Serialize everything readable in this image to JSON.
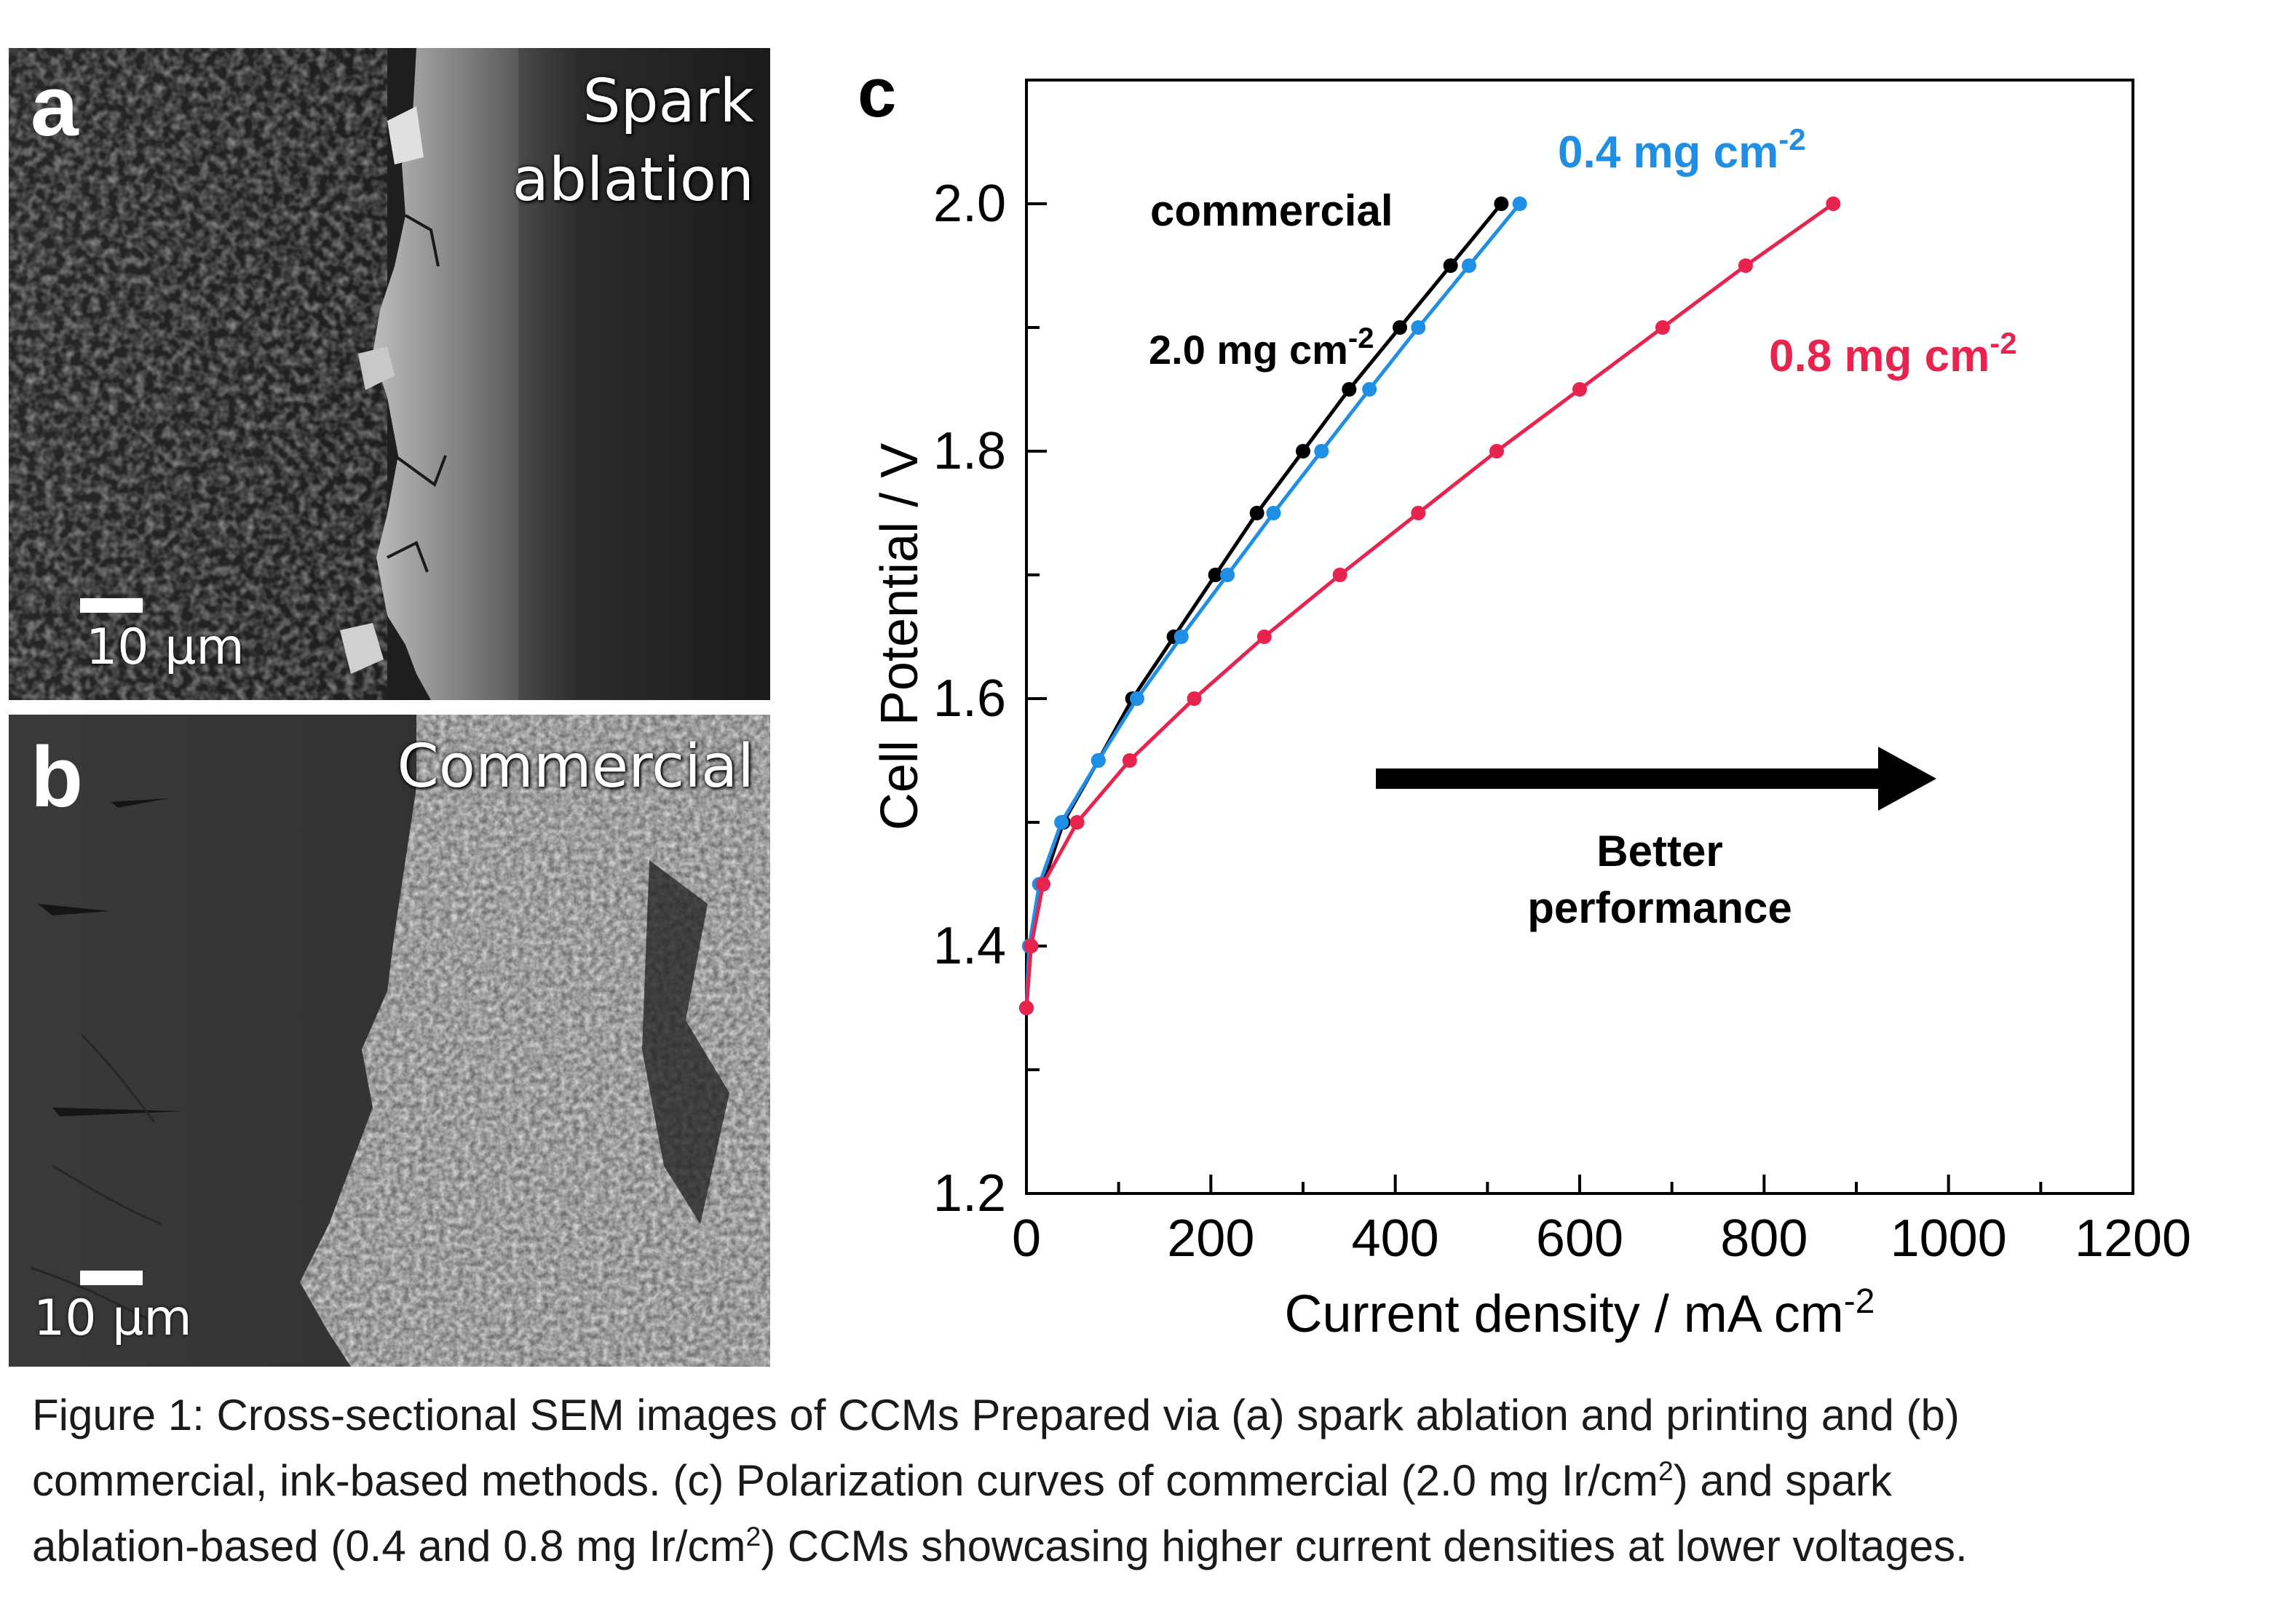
{
  "panels": {
    "a": {
      "letter": "a",
      "title_line1": "Spark",
      "title_line2": "ablation",
      "scale_label": "10 µm"
    },
    "b": {
      "letter": "b",
      "title": "Commercial",
      "scale_label": "10 µm"
    }
  },
  "chart_panel_letter": "c",
  "chart_data": {
    "type": "line",
    "xlabel": "Current density / mA cm",
    "xlabel_sup": "-2",
    "ylabel": "Cell Potential / V",
    "xlim": [
      0,
      1200
    ],
    "ylim": [
      1.2,
      2.1
    ],
    "xticks": [
      0,
      200,
      400,
      600,
      800,
      1000,
      1200
    ],
    "yticks_labeled": [
      1.2,
      1.4,
      1.6,
      1.8,
      2.0
    ],
    "ytick_labels": [
      "1.2",
      "1.4",
      "1.6",
      "1.8",
      "2.0"
    ],
    "xtick_labels": [
      "0",
      "200",
      "400",
      "600",
      "800",
      "1000",
      "1200"
    ],
    "series": [
      {
        "name": "commercial 2.0 mg cm-2",
        "color": "#000000",
        "x": [
          0,
          5,
          18,
          40,
          78,
          115,
          160,
          205,
          250,
          300,
          350,
          405,
          460,
          515
        ],
        "y": [
          1.35,
          1.4,
          1.45,
          1.5,
          1.55,
          1.6,
          1.65,
          1.7,
          1.75,
          1.8,
          1.85,
          1.9,
          1.95,
          2.0
        ]
      },
      {
        "name": "0.4 mg cm-2",
        "color": "#1f8fe6",
        "x": [
          0,
          3,
          14,
          38,
          78,
          120,
          168,
          218,
          268,
          320,
          372,
          425,
          480,
          535
        ],
        "y": [
          1.35,
          1.4,
          1.45,
          1.5,
          1.55,
          1.6,
          1.65,
          1.7,
          1.75,
          1.8,
          1.85,
          1.9,
          1.95,
          2.0
        ]
      },
      {
        "name": "0.8 mg cm-2",
        "color": "#e8244e",
        "x": [
          0,
          5,
          18,
          55,
          112,
          182,
          258,
          340,
          425,
          510,
          600,
          690,
          780,
          875
        ],
        "y": [
          1.35,
          1.4,
          1.45,
          1.5,
          1.55,
          1.6,
          1.65,
          1.7,
          1.75,
          1.8,
          1.85,
          1.9,
          1.95,
          2.0
        ]
      }
    ],
    "annotations": {
      "commercial_label": "commercial",
      "commercial_loading": "2.0 mg cm",
      "blue_label": "0.4 mg cm",
      "red_label": "0.8 mg cm",
      "sup": "-2",
      "arrow_line1": "Better",
      "arrow_line2": "performance"
    },
    "colors": {
      "black": "#000000",
      "blue": "#1f8fe6",
      "red": "#e8244e"
    }
  },
  "caption": {
    "line1": "Figure 1: Cross-sectional SEM images of CCMs Prepared via (a) spark ablation and printing and (b)",
    "line2_a": "commercial, ink-based methods. (c) Polarization curves of commercial (2.0 mg Ir/cm",
    "line2_sup": "2",
    "line2_b": ") and spark",
    "line3_a": "ablation-based (0.4 and 0.8 mg Ir/cm",
    "line3_sup": "2",
    "line3_b": ") CCMs showcasing higher current densities at lower voltages."
  }
}
